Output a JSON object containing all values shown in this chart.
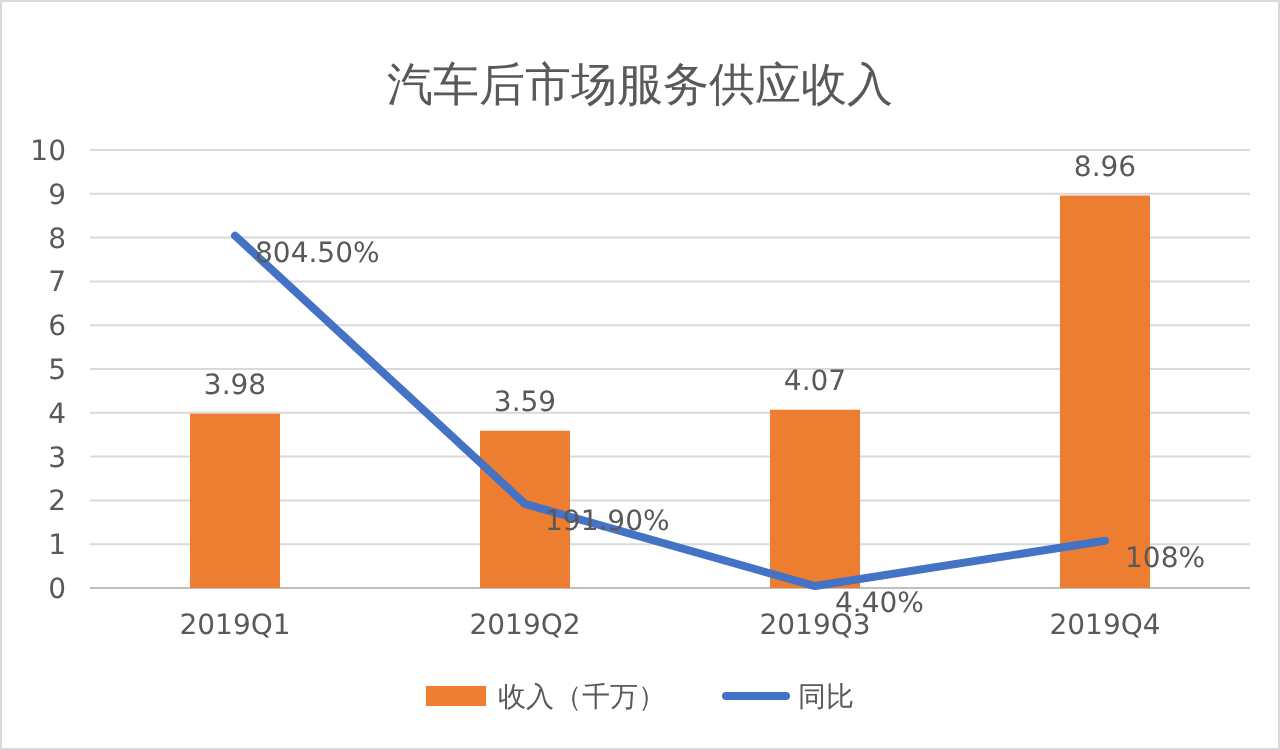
{
  "chart_data": {
    "type": "bar",
    "title": "汽车后市场服务供应收入",
    "categories": [
      "2019Q1",
      "2019Q2",
      "2019Q3",
      "2019Q4"
    ],
    "series": [
      {
        "name": "收入（千万）",
        "color": "#ed7d31",
        "values": [
          3.98,
          3.59,
          4.07,
          8.96
        ],
        "value_labels": [
          "3.98",
          "3.59",
          "4.07",
          "8.96"
        ]
      },
      {
        "name": "同比",
        "type": "line",
        "color": "#4472c4",
        "values": [
          8.045,
          1.919,
          0.044,
          1.08
        ],
        "value_labels": [
          "804.50%",
          "191.90%",
          "4.40%",
          "108%"
        ]
      }
    ],
    "ylim": [
      0,
      10
    ],
    "yticks": [
      0,
      1,
      2,
      3,
      4,
      5,
      6,
      7,
      8,
      9,
      10
    ],
    "grid": "y",
    "legend": "bottom",
    "marker": "none",
    "line_style": "solid"
  }
}
